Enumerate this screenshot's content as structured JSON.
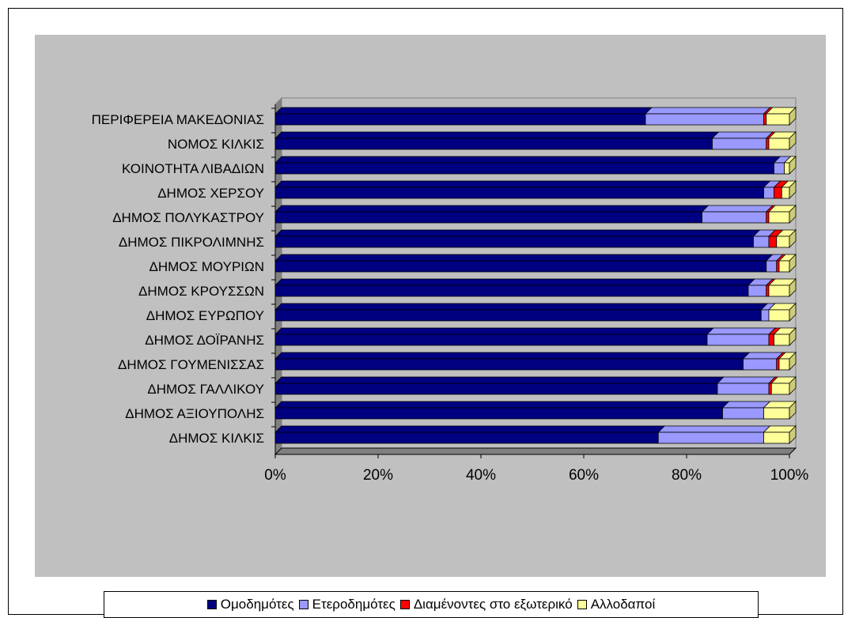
{
  "chart_data": {
    "type": "bar",
    "orientation": "horizontal",
    "stacked": "percent",
    "categories": [
      "ΠΕΡΙΦΕΡΕΙΑ ΜΑΚΕΔΟΝΙΑΣ",
      "ΝΟΜΟΣ ΚΙΛΚΙΣ",
      "ΚΟΙΝΟΤΗΤΑ ΛΙΒΑΔΙΩΝ",
      "ΔΗΜΟΣ ΧΕΡΣΟΥ",
      "ΔΗΜΟΣ ΠΟΛΥΚΑΣΤΡΟΥ",
      "ΔΗΜΟΣ ΠΙΚΡΟΛΙΜΝΗΣ",
      "ΔΗΜΟΣ ΜΟΥΡΙΩΝ",
      "ΔΗΜΟΣ ΚΡΟΥΣΣΩΝ",
      "ΔΗΜΟΣ ΕΥΡΩΠΟΥ",
      "ΔΗΜΟΣ ΔΟΪΡΑΝΗΣ",
      "ΔΗΜΟΣ ΓΟΥΜΕΝΙΣΣΑΣ",
      "ΔΗΜΟΣ ΓΑΛΛΙΚΟΥ",
      "ΔΗΜΟΣ ΑΞΙΟΥΠΟΛΗΣ",
      "ΔΗΜΟΣ ΚΙΛΚΙΣ"
    ],
    "series": [
      {
        "name": "Ομοδημότες",
        "color": "#000080",
        "values": [
          72,
          85,
          97,
          95,
          83,
          93,
          95.5,
          92,
          94.5,
          84,
          91,
          86,
          87,
          74.5
        ]
      },
      {
        "name": "Ετεροδημότες",
        "color": "#9999ff",
        "values": [
          23,
          10.5,
          2,
          2,
          12.5,
          3,
          2,
          3.5,
          1.5,
          12,
          6.5,
          10,
          8,
          20.5
        ]
      },
      {
        "name": "Διαμένοντες στο εξωτερικό",
        "color": "#ff0000",
        "values": [
          0.5,
          0.5,
          0,
          1.5,
          0.5,
          1.5,
          0.5,
          0.5,
          0,
          1,
          0.5,
          0.5,
          0,
          0
        ]
      },
      {
        "name": "Αλλοδαποί",
        "color": "#ffff99",
        "values": [
          4.5,
          4,
          1,
          1.5,
          4,
          2.5,
          2,
          4,
          4,
          3,
          2,
          3.5,
          5,
          5
        ]
      }
    ],
    "x_ticks": [
      "0%",
      "20%",
      "40%",
      "60%",
      "80%",
      "100%"
    ],
    "xlim": [
      0,
      100
    ],
    "title": "",
    "xlabel": "",
    "ylabel": "",
    "grid": false,
    "legend_position": "bottom",
    "colors": {
      "plot_background": "#c0c0c0",
      "floor": "#808080"
    }
  }
}
